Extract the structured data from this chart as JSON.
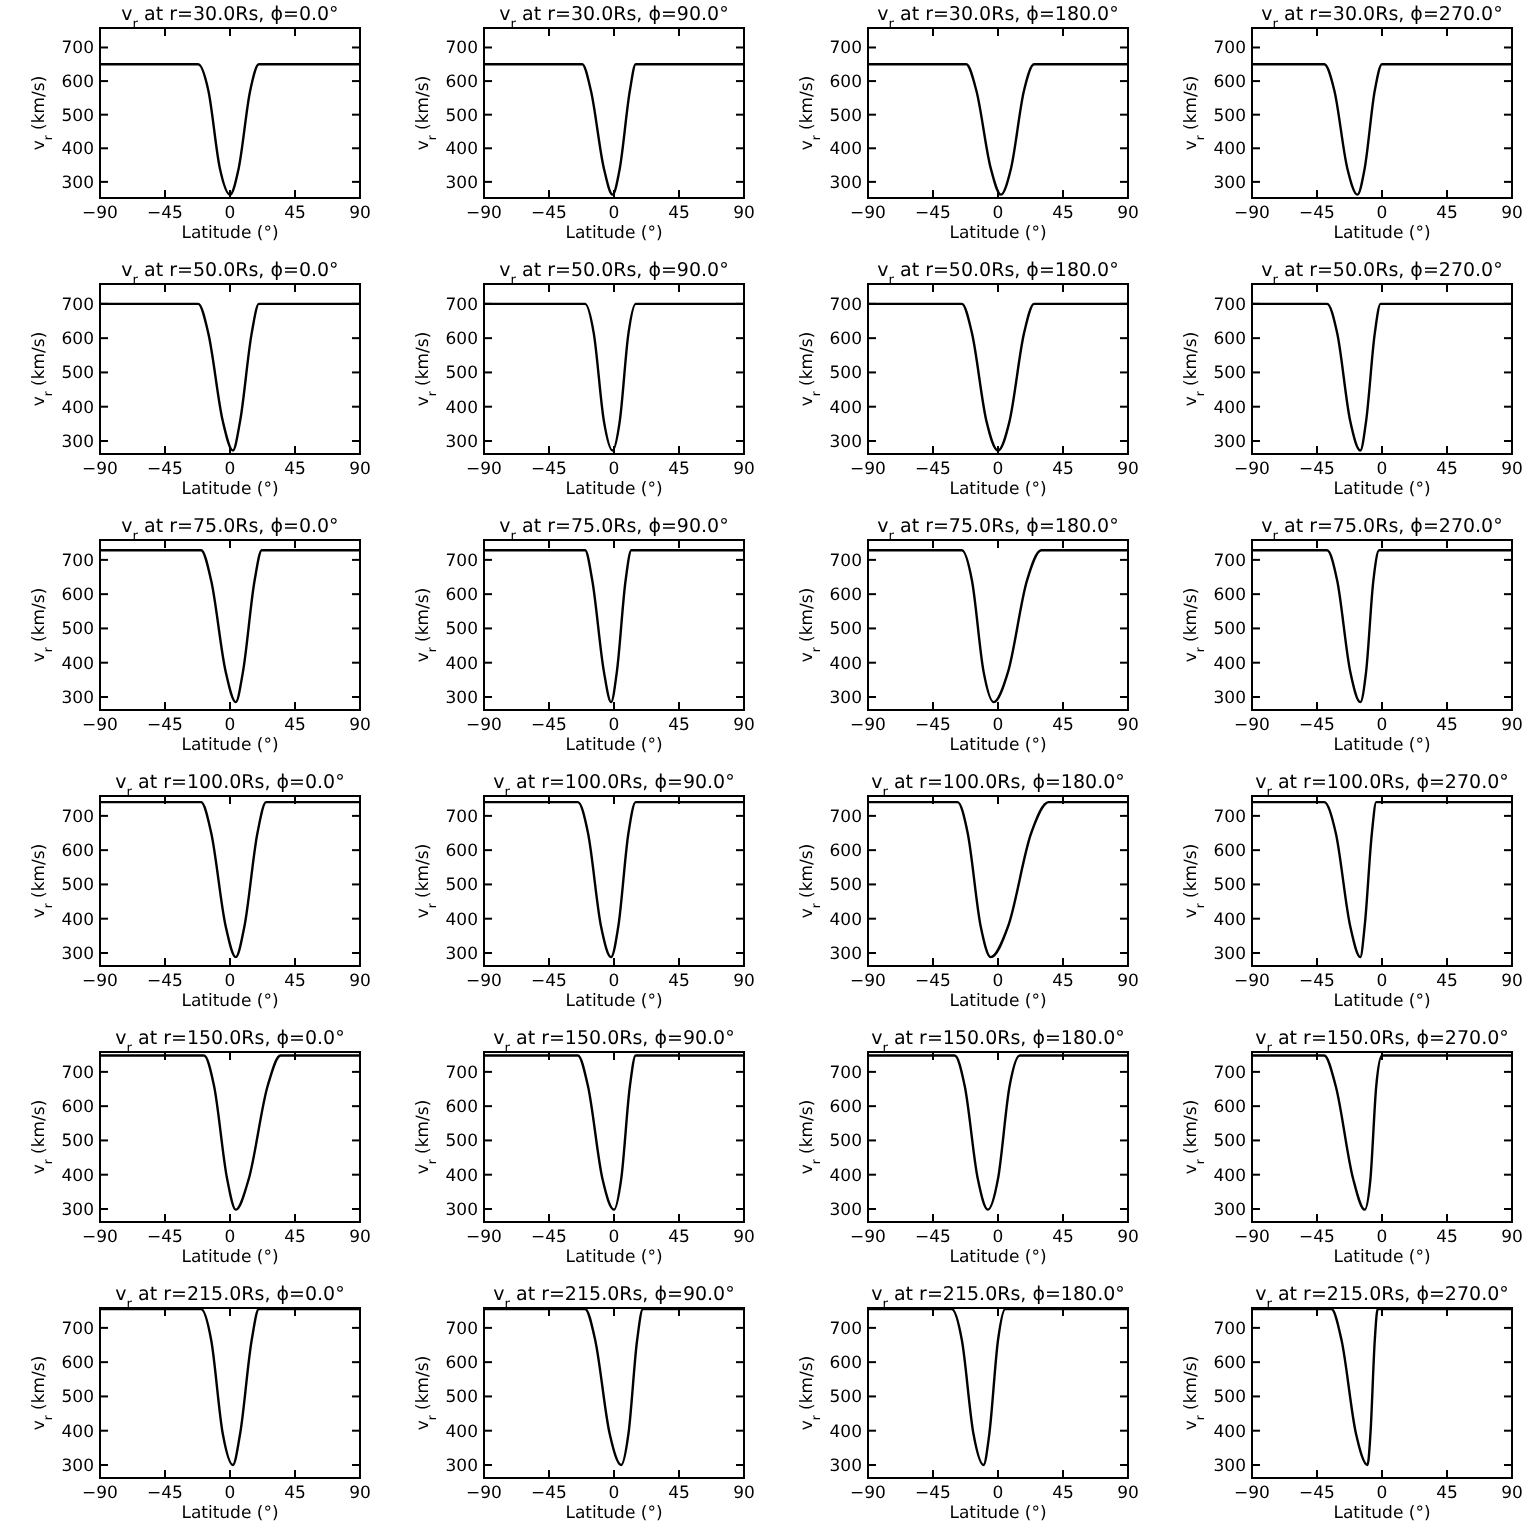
{
  "chart_data": [
    {
      "type": "line",
      "title": "v$_{r}$ at r=30.0Rs, ϕ=0.0°",
      "xlabel": "Latitude (°)",
      "ylabel": "v$_{r}$ (km/s)",
      "xlim": [
        -90,
        90
      ],
      "xticks": [
        -90,
        -45,
        0,
        45,
        90
      ],
      "ylim": [
        252,
        758
      ],
      "yticks": [
        300,
        400,
        500,
        600,
        700
      ],
      "color": "#000000",
      "x": [
        -90,
        -22,
        -15,
        -7,
        0,
        6,
        14,
        20,
        90
      ],
      "values": [
        650,
        650,
        572,
        340,
        262,
        340,
        572,
        650,
        650
      ]
    },
    {
      "type": "line",
      "title": "v$_{r}$ at r=30.0Rs, ϕ=90.0°",
      "xlabel": "Latitude (°)",
      "ylabel": "v$_{r}$ (km/s)",
      "xlim": [
        -90,
        90
      ],
      "xticks": [
        -90,
        -45,
        0,
        45,
        90
      ],
      "ylim": [
        252,
        758
      ],
      "yticks": [
        300,
        400,
        500,
        600,
        700
      ],
      "color": "#000000",
      "x": [
        -90,
        -22,
        -16,
        -7,
        -1,
        4,
        11,
        15,
        90
      ],
      "values": [
        650,
        650,
        572,
        340,
        262,
        340,
        572,
        650,
        650
      ]
    },
    {
      "type": "line",
      "title": "v$_{r}$ at r=30.0Rs, ϕ=180.0°",
      "xlabel": "Latitude (°)",
      "ylabel": "v$_{r}$ (km/s)",
      "xlim": [
        -90,
        90
      ],
      "xticks": [
        -90,
        -45,
        0,
        45,
        90
      ],
      "ylim": [
        252,
        758
      ],
      "yticks": [
        300,
        400,
        500,
        600,
        700
      ],
      "color": "#000000",
      "x": [
        -90,
        -22,
        -15,
        -5,
        2,
        9,
        18,
        25,
        90
      ],
      "values": [
        650,
        650,
        572,
        340,
        262,
        340,
        572,
        650,
        650
      ]
    },
    {
      "type": "line",
      "title": "v$_{r}$ at r=30.0Rs, ϕ=270.0°",
      "xlabel": "Latitude (°)",
      "ylabel": "v$_{r}$ (km/s)",
      "xlim": [
        -90,
        90
      ],
      "xticks": [
        -90,
        -45,
        0,
        45,
        90
      ],
      "ylim": [
        252,
        758
      ],
      "yticks": [
        300,
        400,
        500,
        600,
        700
      ],
      "color": "#000000",
      "x": [
        -90,
        -40,
        -33,
        -24,
        -17,
        -12,
        -5,
        0,
        90
      ],
      "values": [
        650,
        650,
        572,
        340,
        262,
        340,
        572,
        650,
        650
      ]
    },
    {
      "type": "line",
      "title": "v$_{r}$ at r=50.0Rs, ϕ=0.0°",
      "xlabel": "Latitude (°)",
      "ylabel": "v$_{r}$ (km/s)",
      "xlim": [
        -90,
        90
      ],
      "xticks": [
        -90,
        -45,
        0,
        45,
        90
      ],
      "ylim": [
        262,
        758
      ],
      "yticks": [
        300,
        400,
        500,
        600,
        700
      ],
      "color": "#000000",
      "x": [
        -90,
        -22,
        -15,
        -5,
        2,
        7,
        15,
        20,
        90
      ],
      "values": [
        700,
        700,
        614,
        358,
        272,
        358,
        614,
        700,
        700
      ]
    },
    {
      "type": "line",
      "title": "v$_{r}$ at r=50.0Rs, ϕ=90.0°",
      "xlabel": "Latitude (°)",
      "ylabel": "v$_{r}$ (km/s)",
      "xlim": [
        -90,
        90
      ],
      "xticks": [
        -90,
        -45,
        0,
        45,
        90
      ],
      "ylim": [
        262,
        758
      ],
      "yticks": [
        300,
        400,
        500,
        600,
        700
      ],
      "color": "#000000",
      "x": [
        -90,
        -20,
        -14,
        -7,
        -1,
        4,
        10,
        15,
        90
      ],
      "values": [
        700,
        700,
        614,
        358,
        272,
        358,
        614,
        700,
        700
      ]
    },
    {
      "type": "line",
      "title": "v$_{r}$ at r=50.0Rs, ϕ=180.0°",
      "xlabel": "Latitude (°)",
      "ylabel": "v$_{r}$ (km/s)",
      "xlim": [
        -90,
        90
      ],
      "xticks": [
        -90,
        -45,
        0,
        45,
        90
      ],
      "ylim": [
        262,
        758
      ],
      "yticks": [
        300,
        400,
        500,
        600,
        700
      ],
      "color": "#000000",
      "x": [
        -90,
        -25,
        -18,
        -8,
        0,
        8,
        18,
        25,
        90
      ],
      "values": [
        700,
        700,
        614,
        358,
        272,
        358,
        614,
        700,
        700
      ]
    },
    {
      "type": "line",
      "title": "v$_{r}$ at r=50.0Rs, ϕ=270.0°",
      "xlabel": "Latitude (°)",
      "ylabel": "v$_{r}$ (km/s)",
      "xlim": [
        -90,
        90
      ],
      "xticks": [
        -90,
        -45,
        0,
        45,
        90
      ],
      "ylim": [
        262,
        758
      ],
      "yticks": [
        300,
        400,
        500,
        600,
        700
      ],
      "color": "#000000",
      "x": [
        -90,
        -38,
        -31,
        -22,
        -15,
        -11,
        -5,
        -1,
        90
      ],
      "values": [
        700,
        700,
        614,
        358,
        272,
        358,
        614,
        700,
        700
      ]
    },
    {
      "type": "line",
      "title": "v$_{r}$ at r=75.0Rs, ϕ=0.0°",
      "xlabel": "Latitude (°)",
      "ylabel": "v$_{r}$ (km/s)",
      "xlim": [
        -90,
        90
      ],
      "xticks": [
        -90,
        -45,
        0,
        45,
        90
      ],
      "ylim": [
        262,
        758
      ],
      "yticks": [
        300,
        400,
        500,
        600,
        700
      ],
      "color": "#000000",
      "x": [
        -90,
        -20,
        -13,
        -3,
        4,
        9,
        17,
        22,
        90
      ],
      "values": [
        728,
        728,
        639,
        374,
        285,
        374,
        639,
        728,
        728
      ]
    },
    {
      "type": "line",
      "title": "v$_{r}$ at r=75.0Rs, ϕ=90.0°",
      "xlabel": "Latitude (°)",
      "ylabel": "v$_{r}$ (km/s)",
      "xlim": [
        -90,
        90
      ],
      "xticks": [
        -90,
        -45,
        0,
        45,
        90
      ],
      "ylim": [
        262,
        758
      ],
      "yticks": [
        300,
        400,
        500,
        600,
        700
      ],
      "color": "#000000",
      "x": [
        -90,
        -20,
        -15,
        -7,
        -2,
        2,
        8,
        12,
        90
      ],
      "values": [
        728,
        728,
        639,
        374,
        285,
        374,
        639,
        728,
        728
      ]
    },
    {
      "type": "line",
      "title": "v$_{r}$ at r=75.0Rs, ϕ=180.0°",
      "xlabel": "Latitude (°)",
      "ylabel": "v$_{r}$ (km/s)",
      "xlim": [
        -90,
        90
      ],
      "xticks": [
        -90,
        -45,
        0,
        45,
        90
      ],
      "ylim": [
        262,
        758
      ],
      "yticks": [
        300,
        400,
        500,
        600,
        700
      ],
      "color": "#000000",
      "x": [
        -90,
        -25,
        -18,
        -10,
        -3,
        7,
        20,
        30,
        90
      ],
      "values": [
        728,
        728,
        639,
        374,
        285,
        374,
        639,
        728,
        728
      ]
    },
    {
      "type": "line",
      "title": "v$_{r}$ at r=75.0Rs, ϕ=270.0°",
      "xlabel": "Latitude (°)",
      "ylabel": "v$_{r}$ (km/s)",
      "xlim": [
        -90,
        90
      ],
      "xticks": [
        -90,
        -45,
        0,
        45,
        90
      ],
      "ylim": [
        262,
        758
      ],
      "yticks": [
        300,
        400,
        500,
        600,
        700
      ],
      "color": "#000000",
      "x": [
        -90,
        -38,
        -31,
        -22,
        -15,
        -11,
        -6,
        -2,
        90
      ],
      "values": [
        728,
        728,
        639,
        374,
        285,
        374,
        639,
        728,
        728
      ]
    },
    {
      "type": "line",
      "title": "v$_{r}$ at r=100.0Rs, ϕ=0.0°",
      "xlabel": "Latitude (°)",
      "ylabel": "v$_{r}$ (km/s)",
      "xlim": [
        -90,
        90
      ],
      "xticks": [
        -90,
        -45,
        0,
        45,
        90
      ],
      "ylim": [
        262,
        758
      ],
      "yticks": [
        300,
        400,
        500,
        600,
        700
      ],
      "color": "#000000",
      "x": [
        -90,
        -20,
        -13,
        -3,
        4,
        10,
        19,
        25,
        90
      ],
      "values": [
        740,
        740,
        650,
        378,
        288,
        378,
        650,
        740,
        740
      ]
    },
    {
      "type": "line",
      "title": "v$_{r}$ at r=100.0Rs, ϕ=90.0°",
      "xlabel": "Latitude (°)",
      "ylabel": "v$_{r}$ (km/s)",
      "xlim": [
        -90,
        90
      ],
      "xticks": [
        -90,
        -45,
        0,
        45,
        90
      ],
      "ylim": [
        262,
        758
      ],
      "yticks": [
        300,
        400,
        500,
        600,
        700
      ],
      "color": "#000000",
      "x": [
        -90,
        -25,
        -18,
        -9,
        -2,
        3,
        10,
        15,
        90
      ],
      "values": [
        740,
        740,
        650,
        378,
        288,
        378,
        650,
        740,
        740
      ]
    },
    {
      "type": "line",
      "title": "v$_{r}$ at r=100.0Rs, ϕ=180.0°",
      "xlabel": "Latitude (°)",
      "ylabel": "v$_{r}$ (km/s)",
      "xlim": [
        -90,
        90
      ],
      "xticks": [
        -90,
        -45,
        0,
        45,
        90
      ],
      "ylim": [
        262,
        758
      ],
      "yticks": [
        300,
        400,
        500,
        600,
        700
      ],
      "color": "#000000",
      "x": [
        -90,
        -28,
        -21,
        -12,
        -5,
        7,
        23,
        35,
        90
      ],
      "values": [
        740,
        740,
        650,
        378,
        288,
        378,
        650,
        740,
        740
      ]
    },
    {
      "type": "line",
      "title": "v$_{r}$ at r=100.0Rs, ϕ=270.0°",
      "xlabel": "Latitude (°)",
      "ylabel": "v$_{r}$ (km/s)",
      "xlim": [
        -90,
        90
      ],
      "xticks": [
        -90,
        -45,
        0,
        45,
        90
      ],
      "ylim": [
        262,
        758
      ],
      "yticks": [
        300,
        400,
        500,
        600,
        700
      ],
      "color": "#000000",
      "x": [
        -90,
        -40,
        -32,
        -22,
        -15,
        -12,
        -7,
        -4,
        90
      ],
      "values": [
        740,
        740,
        650,
        378,
        288,
        378,
        650,
        740,
        740
      ]
    },
    {
      "type": "line",
      "title": "v$_{r}$ at r=150.0Rs, ϕ=0.0°",
      "xlabel": "Latitude (°)",
      "ylabel": "v$_{r}$ (km/s)",
      "xlim": [
        -90,
        90
      ],
      "xticks": [
        -90,
        -45,
        0,
        45,
        90
      ],
      "ylim": [
        262,
        758
      ],
      "yticks": [
        300,
        400,
        500,
        600,
        700
      ],
      "color": "#000000",
      "x": [
        -90,
        -18,
        -11,
        -2,
        4,
        13,
        26,
        35,
        90
      ],
      "values": [
        748,
        748,
        658,
        388,
        298,
        388,
        658,
        748,
        748
      ]
    },
    {
      "type": "line",
      "title": "v$_{r}$ at r=150.0Rs, ϕ=90.0°",
      "xlabel": "Latitude (°)",
      "ylabel": "v$_{r}$ (km/s)",
      "xlim": [
        -90,
        90
      ],
      "xticks": [
        -90,
        -45,
        0,
        45,
        90
      ],
      "ylim": [
        262,
        758
      ],
      "yticks": [
        300,
        400,
        500,
        600,
        700
      ],
      "color": "#000000",
      "x": [
        -90,
        -25,
        -18,
        -8,
        0,
        5,
        11,
        15,
        90
      ],
      "values": [
        748,
        748,
        658,
        388,
        298,
        388,
        658,
        748,
        748
      ]
    },
    {
      "type": "line",
      "title": "v$_{r}$ at r=150.0Rs, ϕ=180.0°",
      "xlabel": "Latitude (°)",
      "ylabel": "v$_{r}$ (km/s)",
      "xlim": [
        -90,
        90
      ],
      "xticks": [
        -90,
        -45,
        0,
        45,
        90
      ],
      "ylim": [
        262,
        758
      ],
      "yticks": [
        300,
        400,
        500,
        600,
        700
      ],
      "color": "#000000",
      "x": [
        -90,
        -30,
        -23,
        -14,
        -7,
        0,
        8,
        15,
        90
      ],
      "values": [
        748,
        748,
        658,
        388,
        298,
        388,
        658,
        748,
        748
      ]
    },
    {
      "type": "line",
      "title": "v$_{r}$ at r=150.0Rs, ϕ=270.0°",
      "xlabel": "Latitude (°)",
      "ylabel": "v$_{r}$ (km/s)",
      "xlim": [
        -90,
        90
      ],
      "xticks": [
        -90,
        -45,
        0,
        45,
        90
      ],
      "ylim": [
        262,
        758
      ],
      "yticks": [
        300,
        400,
        500,
        600,
        700
      ],
      "color": "#000000",
      "x": [
        -90,
        -40,
        -32,
        -20,
        -12,
        -8,
        -4,
        0,
        90
      ],
      "values": [
        748,
        748,
        658,
        388,
        298,
        388,
        658,
        748,
        748
      ]
    },
    {
      "type": "line",
      "title": "v$_{r}$ at r=215.0Rs, ϕ=0.0°",
      "xlabel": "Latitude (°)",
      "ylabel": "v$_{r}$ (km/s)",
      "xlim": [
        -90,
        90
      ],
      "xticks": [
        -90,
        -45,
        0,
        45,
        90
      ],
      "ylim": [
        262,
        758
      ],
      "yticks": [
        300,
        400,
        500,
        600,
        700
      ],
      "color": "#000000",
      "x": [
        -90,
        -20,
        -13,
        -5,
        2,
        7,
        15,
        20,
        90
      ],
      "values": [
        755,
        755,
        664,
        391,
        300,
        391,
        664,
        755,
        755
      ]
    },
    {
      "type": "line",
      "title": "v$_{r}$ at r=215.0Rs, ϕ=90.0°",
      "xlabel": "Latitude (°)",
      "ylabel": "v$_{r}$ (km/s)",
      "xlim": [
        -90,
        90
      ],
      "xticks": [
        -90,
        -45,
        0,
        45,
        90
      ],
      "ylim": [
        262,
        758
      ],
      "yticks": [
        300,
        400,
        500,
        600,
        700
      ],
      "color": "#000000",
      "x": [
        -90,
        -20,
        -13,
        -3,
        5,
        10,
        16,
        20,
        90
      ],
      "values": [
        755,
        755,
        664,
        391,
        300,
        391,
        664,
        755,
        755
      ]
    },
    {
      "type": "line",
      "title": "v$_{r}$ at r=215.0Rs, ϕ=180.0°",
      "xlabel": "Latitude (°)",
      "ylabel": "v$_{r}$ (km/s)",
      "xlim": [
        -90,
        90
      ],
      "xticks": [
        -90,
        -45,
        0,
        45,
        90
      ],
      "ylim": [
        262,
        758
      ],
      "yticks": [
        300,
        400,
        500,
        600,
        700
      ],
      "color": "#000000",
      "x": [
        -90,
        -32,
        -25,
        -17,
        -10,
        -6,
        0,
        5,
        90
      ],
      "values": [
        755,
        755,
        664,
        391,
        300,
        391,
        664,
        755,
        755
      ]
    },
    {
      "type": "line",
      "title": "v$_{r}$ at r=215.0Rs, ϕ=270.0°",
      "xlabel": "Latitude (°)",
      "ylabel": "v$_{r}$ (km/s)",
      "xlim": [
        -90,
        90
      ],
      "xticks": [
        -90,
        -45,
        0,
        45,
        90
      ],
      "ylim": [
        262,
        758
      ],
      "yticks": [
        300,
        400,
        500,
        600,
        700
      ],
      "color": "#000000",
      "x": [
        -90,
        -35,
        -28,
        -18,
        -10,
        -8,
        -5,
        -3,
        90
      ],
      "values": [
        755,
        755,
        664,
        391,
        300,
        391,
        664,
        755,
        755
      ]
    }
  ]
}
